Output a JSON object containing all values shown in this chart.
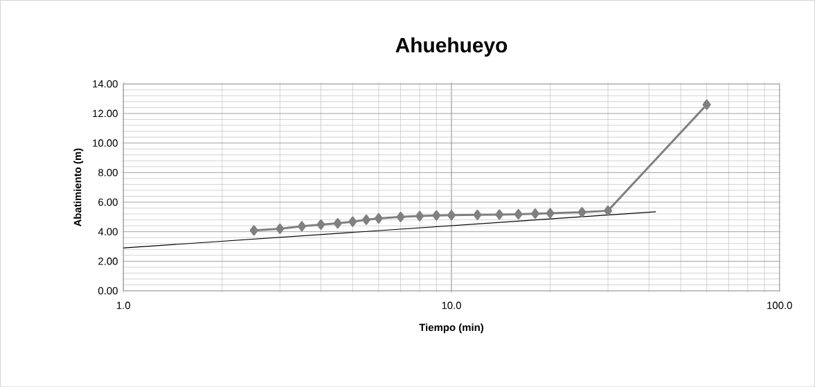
{
  "chart_data": {
    "type": "line",
    "title": "Ahuehueyo",
    "xlabel": "Tiempo (min)",
    "ylabel": "Abatimiento (m)",
    "log": "x",
    "grid": true,
    "marker": "diamond",
    "xlim": [
      1,
      100
    ],
    "xticks": [
      {
        "value": 1,
        "label": "1.0"
      },
      {
        "value": 10,
        "label": "10.0"
      },
      {
        "value": 100,
        "label": "100.0"
      }
    ],
    "ylim": [
      0,
      14
    ],
    "yticks": [
      {
        "value": 0,
        "label": "0.00"
      },
      {
        "value": 2,
        "label": "2.00"
      },
      {
        "value": 4,
        "label": "4.00"
      },
      {
        "value": 6,
        "label": "6.00"
      },
      {
        "value": 8,
        "label": "8.00"
      },
      {
        "value": 10,
        "label": "10.00"
      },
      {
        "value": 12,
        "label": "12.00"
      },
      {
        "value": 14,
        "label": "14.00"
      }
    ],
    "series": [
      {
        "color": "#808080",
        "x": [
          2.5,
          3,
          3.5,
          4,
          4.5,
          5,
          5.5,
          6,
          7,
          8,
          9,
          10,
          12,
          14,
          16,
          18,
          20,
          25,
          30,
          60
        ],
        "values": [
          4.09,
          4.2,
          4.37,
          4.48,
          4.57,
          4.68,
          4.81,
          4.9,
          5.0,
          5.06,
          5.1,
          5.12,
          5.14,
          5.16,
          5.18,
          5.22,
          5.25,
          5.32,
          5.42,
          12.6
        ]
      },
      {
        "color": "#000000",
        "marker": "none",
        "x": [
          1,
          42
        ],
        "values": [
          2.9,
          5.35
        ]
      }
    ]
  }
}
